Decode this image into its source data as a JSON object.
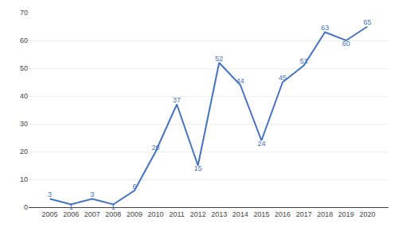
{
  "chart_data": {
    "type": "line",
    "x": [
      2005,
      2006,
      2007,
      2008,
      2009,
      2010,
      2011,
      2012,
      2013,
      2014,
      2015,
      2016,
      2017,
      2018,
      2019,
      2020
    ],
    "values": [
      3,
      1,
      3,
      1,
      6,
      20,
      37,
      15,
      52,
      44,
      24,
      45,
      51,
      63,
      60,
      65
    ],
    "color": "#4472C4",
    "xlim": [
      2004,
      2021
    ],
    "xticks": [
      2005,
      2006,
      2007,
      2008,
      2009,
      2010,
      2011,
      2012,
      2013,
      2014,
      2015,
      2016,
      2017,
      2018,
      2019,
      2020
    ],
    "ylim": [
      0,
      70
    ],
    "yticks": [
      0,
      10,
      20,
      30,
      40,
      50,
      60,
      70
    ],
    "grid": true,
    "data_labels": true
  }
}
